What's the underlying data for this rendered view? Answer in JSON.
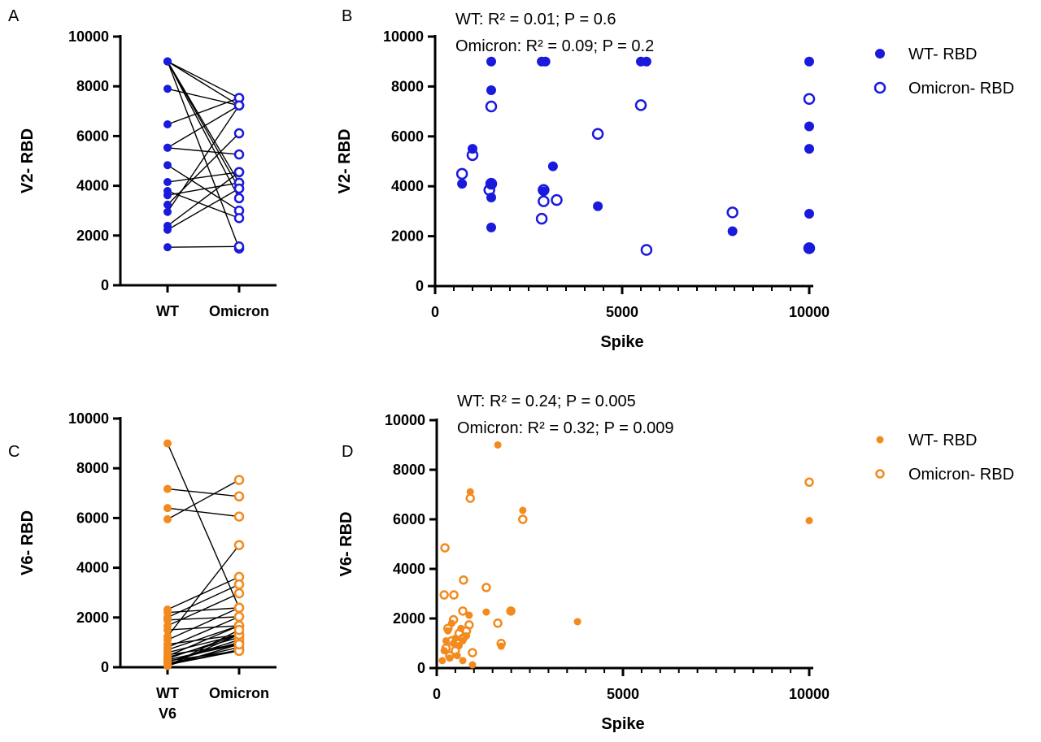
{
  "colors": {
    "v2": "#1a1adc",
    "v6": "#f28a1e",
    "line": "#000000"
  },
  "chart_data": [
    {
      "panel": "A",
      "type": "line",
      "letter": "A",
      "categories": [
        "WT",
        "Omicron"
      ],
      "ylabel": "V2- RBD",
      "ylim": [
        0,
        10000
      ],
      "yticks": [
        0,
        2000,
        4000,
        6000,
        8000,
        10000
      ],
      "color_key": "v2",
      "pairs": [
        [
          9000,
          7530
        ],
        [
          9000,
          7230
        ],
        [
          9000,
          4120
        ],
        [
          9000,
          3890
        ],
        [
          9000,
          3500
        ],
        [
          9000,
          1480
        ],
        [
          7900,
          7230
        ],
        [
          6470,
          7530
        ],
        [
          5530,
          7230
        ],
        [
          5530,
          5260
        ],
        [
          4830,
          3000
        ],
        [
          4150,
          4550
        ],
        [
          3790,
          2700
        ],
        [
          3620,
          4120
        ],
        [
          3240,
          6110
        ],
        [
          2950,
          7230
        ],
        [
          2390,
          4550
        ],
        [
          2230,
          3890
        ],
        [
          1530,
          1560
        ]
      ]
    },
    {
      "panel": "B",
      "type": "scatter",
      "letter": "B",
      "xlabel": "Spike",
      "ylabel": "V2- RBD",
      "xlim": [
        0,
        10000
      ],
      "ylim": [
        0,
        10000
      ],
      "xticks": [
        0,
        5000,
        10000
      ],
      "yticks": [
        0,
        2000,
        4000,
        6000,
        8000,
        10000
      ],
      "color_key": "v2",
      "annotations": [
        "WT: R² = 0.01; P = 0.6",
        "Omicron: R² = 0.09; P = 0.2"
      ],
      "legend": "top-right",
      "series": [
        {
          "name": "WT- RBD",
          "marker": "filled",
          "points": [
            [
              720,
              4100
            ],
            [
              1000,
              5500
            ],
            [
              1500,
              9000
            ],
            [
              1500,
              7850
            ],
            [
              1500,
              4100
            ],
            [
              1500,
              3550
            ],
            [
              1500,
              2350
            ],
            [
              2850,
              9000
            ],
            [
              2950,
              9000
            ],
            [
              2900,
              3800
            ],
            [
              3150,
              4800
            ],
            [
              4350,
              3200
            ],
            [
              5500,
              9000
            ],
            [
              5650,
              9000
            ],
            [
              7950,
              2200
            ],
            [
              10000,
              9000
            ],
            [
              10000,
              6400
            ],
            [
              10000,
              5500
            ],
            [
              10000,
              2900
            ],
            [
              10000,
              1550
            ],
            [
              10000,
              1500
            ]
          ]
        },
        {
          "name": "Omicron- RBD",
          "marker": "open",
          "points": [
            [
              720,
              4500
            ],
            [
              1000,
              5250
            ],
            [
              1500,
              7200
            ],
            [
              1500,
              4100
            ],
            [
              1450,
              3850
            ],
            [
              2900,
              3850
            ],
            [
              2900,
              3400
            ],
            [
              2850,
              2700
            ],
            [
              3250,
              3450
            ],
            [
              4350,
              6100
            ],
            [
              5500,
              7250
            ],
            [
              5650,
              1450
            ],
            [
              7950,
              2950
            ],
            [
              10000,
              7500
            ],
            [
              10000,
              1520
            ]
          ]
        }
      ]
    },
    {
      "panel": "C",
      "type": "line",
      "letter": "C",
      "categories": [
        "WT",
        "Omicron"
      ],
      "xlabel": "V6",
      "ylabel": "V6- RBD",
      "ylim": [
        0,
        10000
      ],
      "yticks": [
        0,
        2000,
        4000,
        6000,
        8000,
        10000
      ],
      "color_key": "v6",
      "pairs": [
        [
          9000,
          2390
        ],
        [
          7170,
          6870
        ],
        [
          6400,
          6060
        ],
        [
          5950,
          7530
        ],
        [
          2320,
          3630
        ],
        [
          2200,
          2390
        ],
        [
          2000,
          3330
        ],
        [
          1900,
          2030
        ],
        [
          1670,
          2970
        ],
        [
          1500,
          1670
        ],
        [
          1240,
          4910
        ],
        [
          1100,
          2390
        ],
        [
          920,
          1310
        ],
        [
          800,
          2030
        ],
        [
          700,
          1670
        ],
        [
          590,
          1310
        ],
        [
          500,
          920
        ],
        [
          450,
          1670
        ],
        [
          400,
          1200
        ],
        [
          350,
          1310
        ],
        [
          300,
          920
        ],
        [
          260,
          660
        ],
        [
          220,
          1000
        ],
        [
          200,
          1100
        ],
        [
          150,
          800
        ],
        [
          120,
          700
        ],
        [
          100,
          660
        ],
        [
          80,
          1310
        ],
        [
          60,
          920
        ],
        [
          50,
          1500
        ]
      ]
    },
    {
      "panel": "D",
      "type": "scatter",
      "letter": "D",
      "xlabel": "Spike",
      "ylabel": "V6- RBD",
      "xlim": [
        0,
        10000
      ],
      "ylim": [
        0,
        10000
      ],
      "xticks": [
        0,
        5000,
        10000
      ],
      "yticks": [
        0,
        2000,
        4000,
        6000,
        8000,
        10000
      ],
      "color_key": "v6",
      "annotations": [
        "WT: R² = 0.24; P = 0.005",
        "Omicron: R² = 0.32; P = 0.009"
      ],
      "legend": "top-right",
      "series": [
        {
          "name": "WT- RBD",
          "marker": "filled",
          "points": [
            [
              1640,
              9000
            ],
            [
              900,
              7110
            ],
            [
              2310,
              6360
            ],
            [
              10000,
              5950
            ],
            [
              1330,
              2260
            ],
            [
              1990,
              2270
            ],
            [
              870,
              2130
            ],
            [
              3780,
              1870
            ],
            [
              1730,
              880
            ],
            [
              960,
              130
            ],
            [
              300,
              1500
            ],
            [
              400,
              1800
            ],
            [
              500,
              1200
            ],
            [
              600,
              900
            ],
            [
              200,
              700
            ],
            [
              350,
              400
            ],
            [
              700,
              300
            ],
            [
              450,
              1000
            ],
            [
              650,
              1600
            ],
            [
              250,
              1100
            ],
            [
              550,
              500
            ],
            [
              800,
              1300
            ],
            [
              150,
              300
            ],
            [
              700,
              1100
            ]
          ]
        },
        {
          "name": "Omicron- RBD",
          "marker": "open",
          "points": [
            [
              10000,
              7500
            ],
            [
              900,
              6850
            ],
            [
              2310,
              6000
            ],
            [
              220,
              4850
            ],
            [
              720,
              3550
            ],
            [
              1330,
              3250
            ],
            [
              200,
              2950
            ],
            [
              460,
              2950
            ],
            [
              700,
              2300
            ],
            [
              1990,
              2300
            ],
            [
              1640,
              1810
            ],
            [
              870,
              1740
            ],
            [
              1730,
              990
            ],
            [
              960,
              620
            ],
            [
              450,
              1950
            ],
            [
              300,
              1600
            ],
            [
              600,
              1400
            ],
            [
              400,
              1100
            ],
            [
              250,
              800
            ],
            [
              700,
              1200
            ],
            [
              500,
              700
            ],
            [
              350,
              500
            ],
            [
              800,
              1500
            ],
            [
              550,
              1000
            ]
          ]
        }
      ]
    }
  ]
}
